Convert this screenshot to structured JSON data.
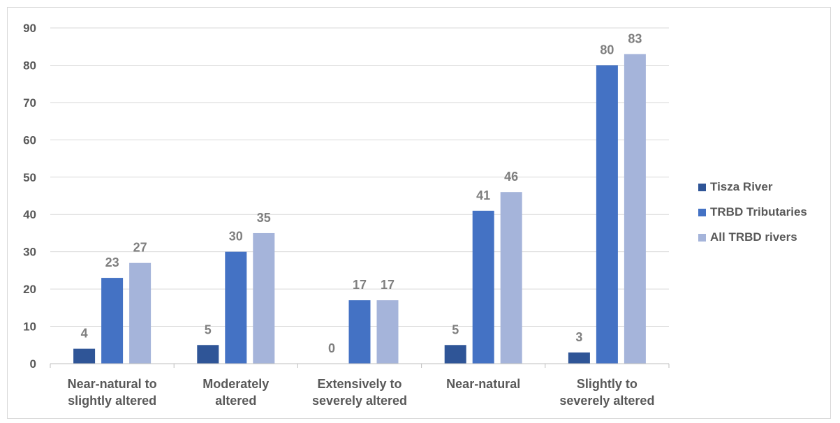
{
  "chart_data": {
    "type": "bar",
    "categories": [
      [
        "Near-natural to",
        "slightly altered"
      ],
      [
        "Moderately",
        "altered"
      ],
      [
        "Extensively to",
        "severely altered"
      ],
      [
        "Near-natural"
      ],
      [
        "Slightly to",
        "severely altered"
      ]
    ],
    "series": [
      {
        "name": "Tisza River",
        "values": [
          4,
          5,
          0,
          5,
          3
        ],
        "color": "#2f5597"
      },
      {
        "name": "TRBD Tributaries",
        "values": [
          23,
          30,
          17,
          41,
          80
        ],
        "color": "#4472c4"
      },
      {
        "name": "All TRBD rivers",
        "values": [
          27,
          35,
          17,
          46,
          83
        ],
        "color": "#a5b4da"
      }
    ],
    "title": "",
    "xlabel": "",
    "ylabel": "",
    "ylim": [
      0,
      90
    ],
    "yticks": [
      0,
      10,
      20,
      30,
      40,
      50,
      60,
      70,
      80,
      90
    ],
    "grid": true,
    "legend_position": "right",
    "data_labels": true
  }
}
